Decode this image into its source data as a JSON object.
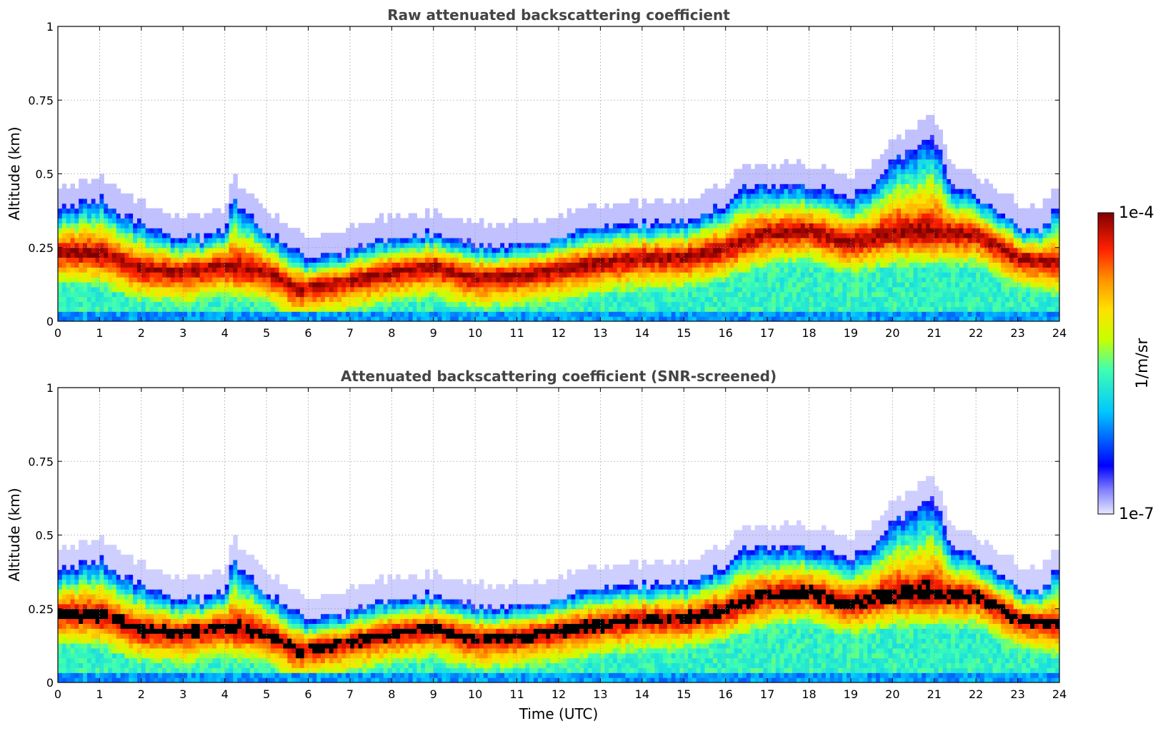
{
  "chart_data": [
    {
      "type": "heatmap",
      "title": "Raw attenuated backscattering coefficient",
      "xlabel": "",
      "ylabel": "Altitude (km)",
      "xlim": [
        0,
        24
      ],
      "ylim": [
        0,
        1
      ],
      "x_ticks": [
        "0",
        "1",
        "2",
        "3",
        "4",
        "5",
        "6",
        "7",
        "8",
        "9",
        "10",
        "11",
        "12",
        "13",
        "14",
        "15",
        "16",
        "17",
        "18",
        "19",
        "20",
        "21",
        "22",
        "23",
        "24"
      ],
      "y_ticks": [
        "0",
        "0.25",
        "0.5",
        "0.75",
        "1"
      ],
      "y_tick_values": [
        0,
        0.25,
        0.5,
        0.75,
        1
      ],
      "grid": true,
      "screened": false,
      "layer_center_km": [
        [
          0,
          0.24
        ],
        [
          1,
          0.23
        ],
        [
          2,
          0.18
        ],
        [
          3,
          0.17
        ],
        [
          4,
          0.19
        ],
        [
          5,
          0.17
        ],
        [
          5.8,
          0.11
        ],
        [
          6,
          0.12
        ],
        [
          7,
          0.14
        ],
        [
          8,
          0.17
        ],
        [
          9,
          0.19
        ],
        [
          10,
          0.15
        ],
        [
          11,
          0.16
        ],
        [
          12,
          0.18
        ],
        [
          13,
          0.2
        ],
        [
          14,
          0.22
        ],
        [
          15,
          0.22
        ],
        [
          16,
          0.25
        ],
        [
          17,
          0.3
        ],
        [
          18,
          0.31
        ],
        [
          19,
          0.27
        ],
        [
          20,
          0.3
        ],
        [
          21,
          0.3
        ],
        [
          22,
          0.3
        ],
        [
          23,
          0.22
        ],
        [
          24,
          0.2
        ]
      ],
      "layer_top_km": [
        [
          0,
          0.38
        ],
        [
          1,
          0.42
        ],
        [
          2,
          0.33
        ],
        [
          3,
          0.28
        ],
        [
          4,
          0.3
        ],
        [
          4.2,
          0.42
        ],
        [
          5,
          0.3
        ],
        [
          6,
          0.22
        ],
        [
          7,
          0.24
        ],
        [
          8,
          0.29
        ],
        [
          9,
          0.3
        ],
        [
          10,
          0.26
        ],
        [
          11,
          0.26
        ],
        [
          12,
          0.29
        ],
        [
          13,
          0.33
        ],
        [
          14,
          0.33
        ],
        [
          15,
          0.34
        ],
        [
          16,
          0.4
        ],
        [
          16.5,
          0.46
        ],
        [
          17,
          0.46
        ],
        [
          18,
          0.46
        ],
        [
          19,
          0.42
        ],
        [
          19.5,
          0.47
        ],
        [
          20,
          0.55
        ],
        [
          21,
          0.62
        ],
        [
          21.5,
          0.45
        ],
        [
          22,
          0.43
        ],
        [
          23,
          0.33
        ],
        [
          23.5,
          0.3
        ],
        [
          24,
          0.4
        ]
      ]
    },
    {
      "type": "heatmap",
      "title": "Attenuated backscattering coefficient (SNR-screened)",
      "xlabel": "Time (UTC)",
      "ylabel": "Altitude (km)",
      "xlim": [
        0,
        24
      ],
      "ylim": [
        0,
        1
      ],
      "x_ticks": [
        "0",
        "1",
        "2",
        "3",
        "4",
        "5",
        "6",
        "7",
        "8",
        "9",
        "10",
        "11",
        "12",
        "13",
        "14",
        "15",
        "16",
        "17",
        "18",
        "19",
        "20",
        "21",
        "22",
        "23",
        "24"
      ],
      "y_ticks": [
        "0",
        "0.25",
        "0.5",
        "0.75",
        "1"
      ],
      "y_tick_values": [
        0,
        0.25,
        0.5,
        0.75,
        1
      ],
      "grid": true,
      "screened": true,
      "layer_center_km": [
        [
          0,
          0.24
        ],
        [
          1,
          0.23
        ],
        [
          2,
          0.18
        ],
        [
          3,
          0.17
        ],
        [
          4,
          0.19
        ],
        [
          5,
          0.17
        ],
        [
          5.8,
          0.11
        ],
        [
          6,
          0.12
        ],
        [
          7,
          0.14
        ],
        [
          8,
          0.17
        ],
        [
          9,
          0.19
        ],
        [
          10,
          0.15
        ],
        [
          11,
          0.16
        ],
        [
          12,
          0.18
        ],
        [
          13,
          0.2
        ],
        [
          14,
          0.22
        ],
        [
          15,
          0.22
        ],
        [
          16,
          0.25
        ],
        [
          17,
          0.3
        ],
        [
          18,
          0.31
        ],
        [
          19,
          0.27
        ],
        [
          20,
          0.3
        ],
        [
          21,
          0.3
        ],
        [
          22,
          0.3
        ],
        [
          23,
          0.22
        ],
        [
          24,
          0.2
        ]
      ],
      "layer_top_km": [
        [
          0,
          0.38
        ],
        [
          1,
          0.42
        ],
        [
          2,
          0.33
        ],
        [
          3,
          0.28
        ],
        [
          4,
          0.3
        ],
        [
          4.2,
          0.42
        ],
        [
          5,
          0.3
        ],
        [
          6,
          0.22
        ],
        [
          7,
          0.24
        ],
        [
          8,
          0.29
        ],
        [
          9,
          0.3
        ],
        [
          10,
          0.26
        ],
        [
          11,
          0.26
        ],
        [
          12,
          0.29
        ],
        [
          13,
          0.33
        ],
        [
          14,
          0.33
        ],
        [
          15,
          0.34
        ],
        [
          16,
          0.4
        ],
        [
          16.5,
          0.46
        ],
        [
          17,
          0.46
        ],
        [
          18,
          0.46
        ],
        [
          19,
          0.42
        ],
        [
          19.5,
          0.47
        ],
        [
          20,
          0.55
        ],
        [
          21,
          0.62
        ],
        [
          21.5,
          0.45
        ],
        [
          22,
          0.43
        ],
        [
          23,
          0.33
        ],
        [
          23.5,
          0.3
        ],
        [
          24,
          0.4
        ]
      ]
    }
  ],
  "colorbar": {
    "label": "1/m/sr",
    "max_label": "1e-4",
    "min_label": "1e-7",
    "scale_min": 1e-07,
    "scale_max": 0.0001,
    "colors": [
      "#e8e8ff",
      "#0000ff",
      "#00c8ff",
      "#c8ff00",
      "#ffa000",
      "#ff2000",
      "#800000"
    ]
  }
}
